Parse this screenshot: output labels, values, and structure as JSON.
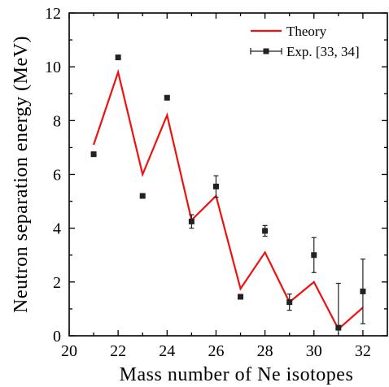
{
  "chart_data": {
    "type": "line",
    "xlabel": "Mass number of Ne isotopes",
    "ylabel": "Neutron separation energy (MeV)",
    "xlim": [
      20,
      33
    ],
    "ylim": [
      0,
      12
    ],
    "xticks": [
      20,
      22,
      24,
      26,
      28,
      30,
      32
    ],
    "yticks": [
      0,
      2,
      4,
      6,
      8,
      10,
      12
    ],
    "legend_position": "top-right",
    "grid": false,
    "series": [
      {
        "name": "Theory",
        "kind": "line",
        "color": "#ee1111",
        "x": [
          21,
          22,
          23,
          24,
          25,
          26,
          27,
          28,
          29,
          30,
          31,
          32
        ],
        "y": [
          7.1,
          9.8,
          6.0,
          8.2,
          4.3,
          5.2,
          1.75,
          3.1,
          1.25,
          2.0,
          0.25,
          1.05
        ]
      },
      {
        "name": "Exp. [33, 34]",
        "kind": "scatter",
        "color": "#222222",
        "x": [
          21,
          22,
          23,
          24,
          25,
          26,
          27,
          28,
          29,
          30,
          31,
          32
        ],
        "y": [
          6.75,
          10.35,
          5.2,
          8.85,
          4.25,
          5.55,
          1.45,
          3.9,
          1.25,
          3.0,
          0.3,
          1.65
        ],
        "yerr": [
          0,
          0,
          0,
          0,
          0.25,
          0.4,
          0.08,
          0.2,
          0.3,
          0.65,
          1.65,
          1.2
        ]
      }
    ]
  }
}
